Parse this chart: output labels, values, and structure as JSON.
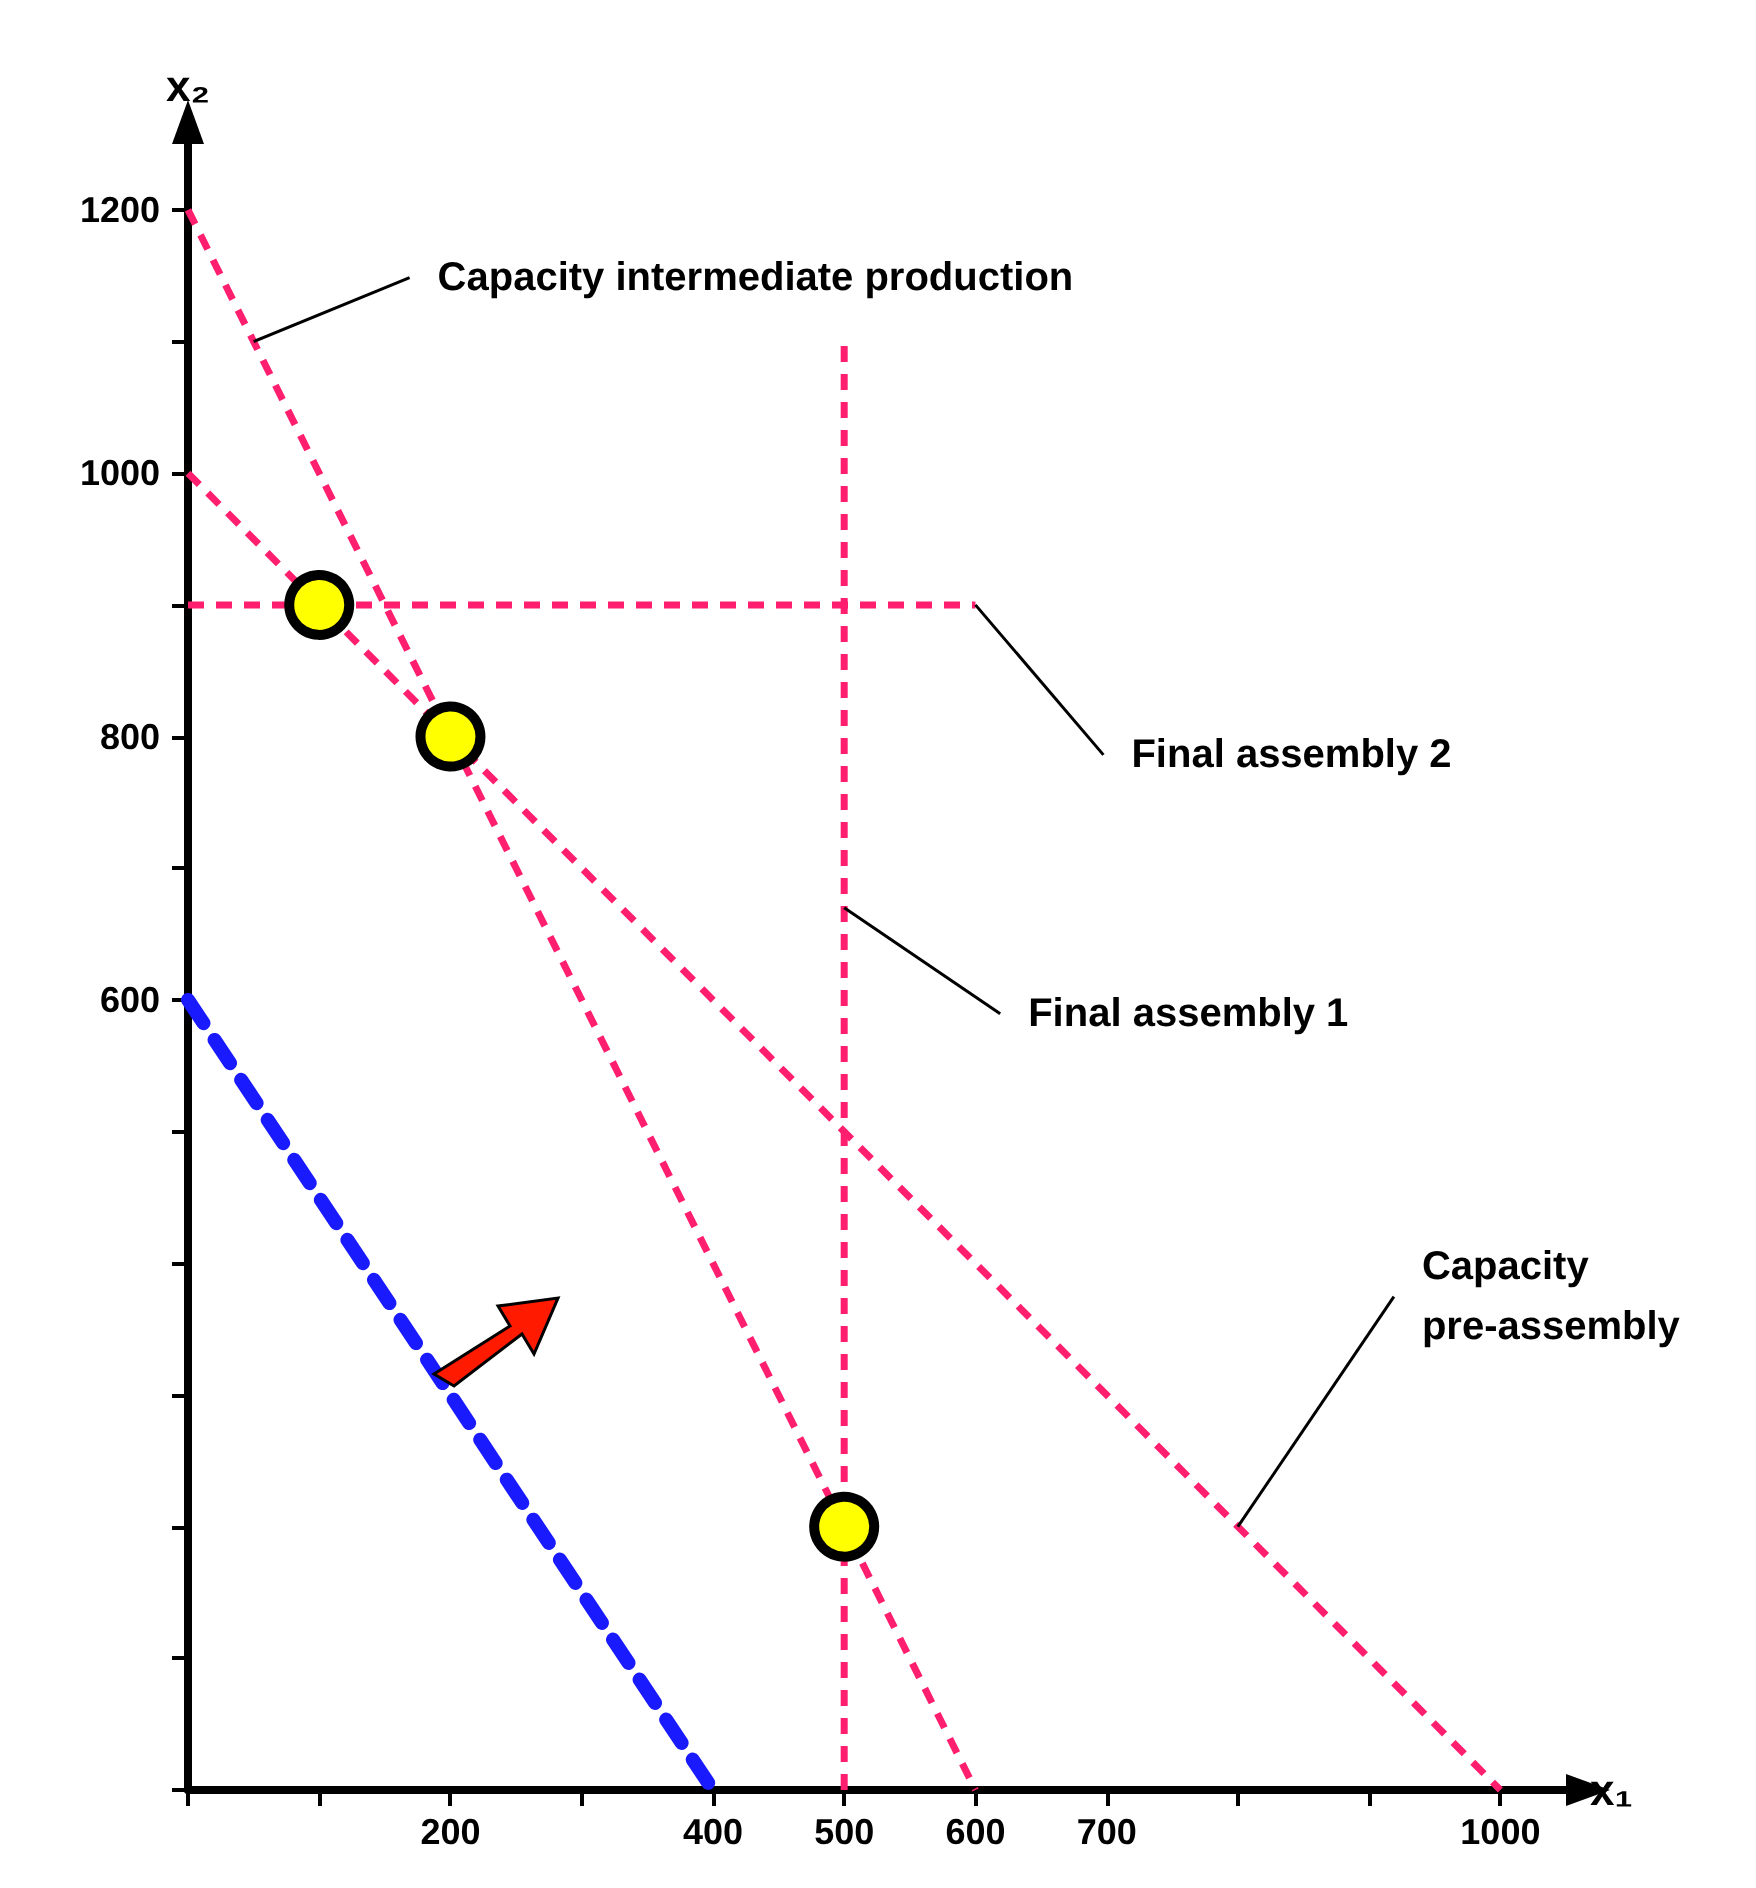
{
  "chart_data": {
    "type": "line",
    "xlabel": "x₁",
    "ylabel": "x₂",
    "xlim": [
      0,
      1050
    ],
    "ylim": [
      0,
      1250
    ],
    "xticks": [
      {
        "value": 0,
        "label": null
      },
      {
        "value": 100,
        "label": null
      },
      200,
      {
        "value": 300,
        "label": null
      },
      400,
      500,
      600,
      700,
      {
        "value": 800,
        "label": null
      },
      {
        "value": 900,
        "label": null
      },
      1000
    ],
    "yticks": [
      {
        "value": 0,
        "label": null
      },
      {
        "value": 100,
        "label": null
      },
      {
        "value": 200,
        "label": null
      },
      {
        "value": 300,
        "label": null
      },
      {
        "value": 400,
        "label": null
      },
      {
        "value": 500,
        "label": null
      },
      600,
      {
        "value": 700,
        "label": null
      },
      800,
      {
        "value": 900,
        "label": null
      },
      1000,
      {
        "value": 1100,
        "label": null
      },
      1200
    ],
    "grid": false,
    "line_style": "dashed",
    "series": [
      {
        "color": "#ff1f6e",
        "x": [
          0,
          600
        ],
        "values": [
          1200,
          0
        ],
        "marker": "none"
      },
      {
        "color": "#ff1f6e",
        "x": [
          0,
          1000
        ],
        "values": [
          1000,
          0
        ],
        "marker": "none"
      },
      {
        "color": "#ff1f6e",
        "x": [
          500,
          500
        ],
        "values": [
          0,
          1100
        ],
        "marker": "none"
      },
      {
        "color": "#ff1f6e",
        "x": [
          0,
          600
        ],
        "values": [
          900,
          900
        ],
        "marker": "none"
      },
      {
        "color": "#1a1aff",
        "x": [
          0,
          400
        ],
        "values": [
          600,
          0
        ],
        "marker": "none"
      },
      {
        "type": "scatter",
        "color": "#ffff00",
        "x": [
          100,
          200,
          500
        ],
        "values": [
          900,
          800,
          200
        ],
        "marker": "circle"
      }
    ],
    "annotations": [
      {
        "text": "Capacity intermediate production",
        "x": 50,
        "y": 1100
      },
      {
        "text": "Final assembly 2",
        "x": 600,
        "y": 900
      },
      {
        "text": "Final assembly 1",
        "x": 500,
        "y": 670
      },
      {
        "text": "Capacity pre-assembly",
        "x": 800,
        "y": 200
      }
    ]
  }
}
